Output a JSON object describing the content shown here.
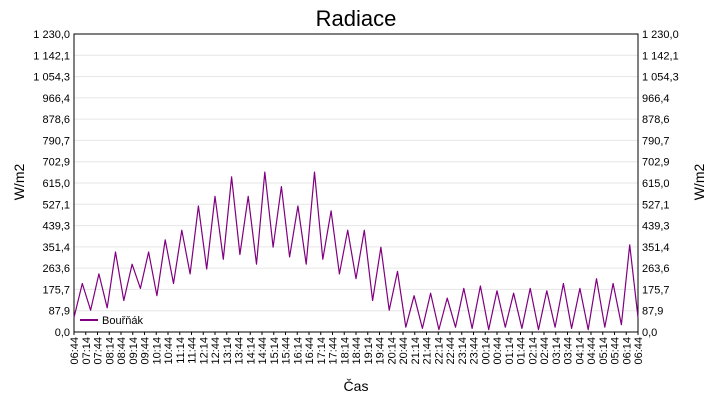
{
  "chart_data": {
    "type": "line",
    "title": "Radiace",
    "xlabel": "Čas",
    "ylabel": "W/m2",
    "ylim": [
      0,
      1230
    ],
    "yticks": [
      "0,0",
      "87,9",
      "175,7",
      "263,6",
      "351,4",
      "439,3",
      "527,1",
      "615,0",
      "702,9",
      "790,7",
      "878,6",
      "966,4",
      "1 054,3",
      "1 142,1",
      "1 230,0"
    ],
    "xticks": [
      "06:44",
      "07:14",
      "07:44",
      "08:14",
      "08:44",
      "09:14",
      "09:44",
      "10:14",
      "10:44",
      "11:14",
      "11:44",
      "12:14",
      "12:44",
      "13:14",
      "13:44",
      "14:14",
      "14:44",
      "15:14",
      "15:44",
      "16:14",
      "16:44",
      "17:14",
      "17:44",
      "18:14",
      "18:44",
      "19:14",
      "19:44",
      "20:14",
      "20:44",
      "21:14",
      "21:44",
      "22:14",
      "22:44",
      "23:14",
      "23:44",
      "00:14",
      "00:44",
      "01:14",
      "01:44",
      "02:14",
      "02:44",
      "03:14",
      "03:44",
      "04:14",
      "04:44",
      "05:14",
      "05:44",
      "06:14",
      "06:44"
    ],
    "grid": true,
    "legend": "bottom-left",
    "series": [
      {
        "name": "Bouřňák",
        "color": "#800080",
        "values": [
          60,
          200,
          90,
          240,
          100,
          330,
          130,
          280,
          180,
          330,
          150,
          380,
          200,
          420,
          240,
          520,
          260,
          560,
          300,
          640,
          320,
          560,
          280,
          660,
          350,
          600,
          310,
          520,
          280,
          660,
          300,
          500,
          240,
          420,
          220,
          420,
          130,
          350,
          90,
          250,
          20,
          150,
          15,
          160,
          10,
          140,
          20,
          180,
          15,
          190,
          10,
          170,
          20,
          160,
          15,
          180,
          10,
          170,
          20,
          200,
          15,
          180,
          10,
          220,
          20,
          200,
          30,
          360,
          60
        ]
      }
    ]
  }
}
